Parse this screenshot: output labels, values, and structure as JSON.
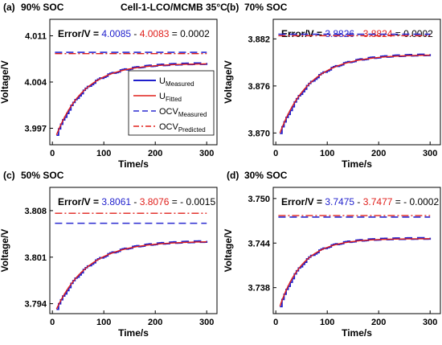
{
  "figure_title": "Cell-1-LCO/MCMB 35°C",
  "colors": {
    "measured": "#1f1fcc",
    "fitted": "#e0201c",
    "ocv_measured": "#2a2ad0",
    "ocv_predicted": "#e0201c",
    "axis": "#000000"
  },
  "legend": {
    "items": [
      {
        "base": "U",
        "sub": "Measured",
        "style": "solid-blue"
      },
      {
        "base": "U",
        "sub": "Fitted",
        "style": "solid-red"
      },
      {
        "base": "OCV",
        "sub": "Measured",
        "style": "dash-blue"
      },
      {
        "base": "OCV",
        "sub": "Predicted",
        "style": "dashdot-red"
      }
    ]
  },
  "chart_data": [
    {
      "type": "line",
      "panel_label": "(a)",
      "soc_label": "90% SOC",
      "xlabel": "Time/s",
      "ylabel": "Voltage/V",
      "xticks": [
        "0",
        "100",
        "200",
        "300"
      ],
      "yticks": [
        "3.997",
        "4.004",
        "4.011"
      ],
      "xlim": [
        -5,
        320
      ],
      "ylim": [
        3.9945,
        4.0135
      ],
      "error": {
        "prefix": "Error/V = ",
        "measured": "4.0085",
        "minus": " - ",
        "predicted": "4.0083",
        "equals": " = 0.0002"
      },
      "ocv_measured": 4.0085,
      "ocv_predicted": 4.0083,
      "u_start": 3.996,
      "u_end": 4.0068,
      "tau": 55,
      "t_start": 8,
      "t_end": 300
    },
    {
      "type": "line",
      "panel_label": "(b)",
      "soc_label": "70% SOC",
      "xlabel": "Time/s",
      "ylabel": "Voltage/V",
      "xticks": [
        "0",
        "100",
        "200",
        "300"
      ],
      "yticks": [
        "3.870",
        "3.876",
        "3.882"
      ],
      "xlim": [
        -5,
        320
      ],
      "ylim": [
        3.8685,
        3.8845
      ],
      "error": {
        "prefix": "Error/V = ",
        "measured": "3.8826",
        "minus": " - ",
        "predicted": "3.8824",
        "equals": " = 0.0002"
      },
      "ocv_measured": 3.8826,
      "ocv_predicted": 3.8824,
      "u_start": 3.87,
      "u_end": 3.88,
      "tau": 58,
      "t_start": 8,
      "t_end": 300
    },
    {
      "type": "line",
      "panel_label": "(c)",
      "soc_label": "50% SOC",
      "xlabel": "Time/s",
      "ylabel": "Voltage/V",
      "xticks": [
        "0",
        "100",
        "200",
        "300"
      ],
      "yticks": [
        "3.794",
        "3.801",
        "3.808"
      ],
      "xlim": [
        -5,
        320
      ],
      "ylim": [
        3.7925,
        3.8115
      ],
      "error": {
        "prefix": "Error/V = ",
        "measured": "3.8061",
        "minus": " - ",
        "predicted": "3.8076",
        "equals": " = - 0.0015"
      },
      "ocv_measured": 3.8061,
      "ocv_predicted": 3.8076,
      "u_start": 3.7932,
      "u_end": 3.8034,
      "tau": 62,
      "t_start": 8,
      "t_end": 300
    },
    {
      "type": "line",
      "panel_label": "(d)",
      "soc_label": "30% SOC",
      "xlabel": "Time/s",
      "ylabel": "Voltage/V",
      "xticks": [
        "0",
        "100",
        "200",
        "300"
      ],
      "yticks": [
        "3.738",
        "3.744",
        "3.750"
      ],
      "xlim": [
        -5,
        320
      ],
      "ylim": [
        3.7345,
        3.7515
      ],
      "error": {
        "prefix": "Error/V = ",
        "measured": "3.7475",
        "minus": " - ",
        "predicted": "3.7477",
        "equals": " = - 0.0002"
      },
      "ocv_measured": 3.7475,
      "ocv_predicted": 3.7477,
      "u_start": 3.7355,
      "u_end": 3.7446,
      "tau": 45,
      "t_start": 8,
      "t_end": 300
    }
  ]
}
